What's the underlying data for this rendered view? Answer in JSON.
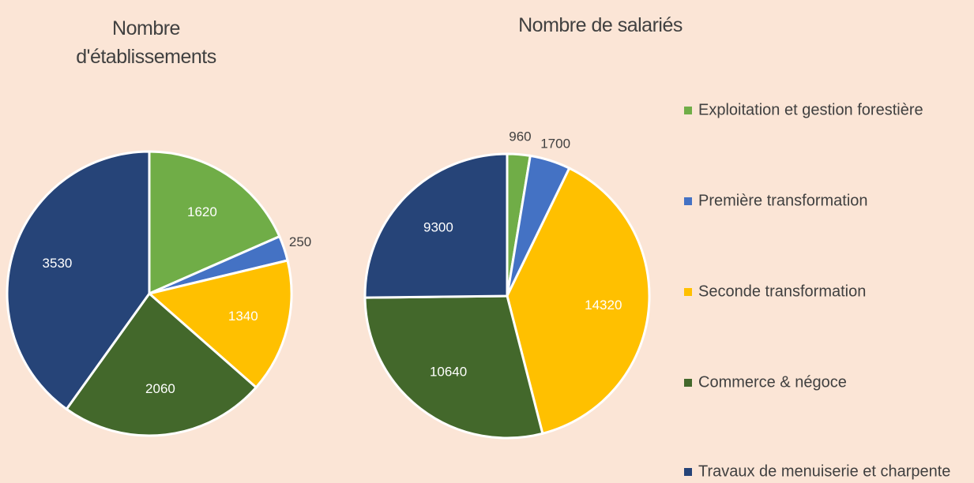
{
  "chart_data": [
    {
      "type": "pie",
      "title": "Nombre d'établissements",
      "values": [
        1620,
        250,
        1340,
        2060,
        3530
      ]
    },
    {
      "type": "pie",
      "title": "Nombre de salariés",
      "values": [
        960,
        1700,
        14320,
        10640,
        9300
      ]
    }
  ],
  "legend": {
    "categories": [
      "Exploitation et gestion forestière",
      "Première transformation",
      "Seconde transformation",
      "Commerce & négoce",
      "Travaux de menuiserie et charpente"
    ],
    "colors": [
      "#70ad47",
      "#4472c4",
      "#ffc000",
      "#43682b",
      "#264478"
    ]
  }
}
